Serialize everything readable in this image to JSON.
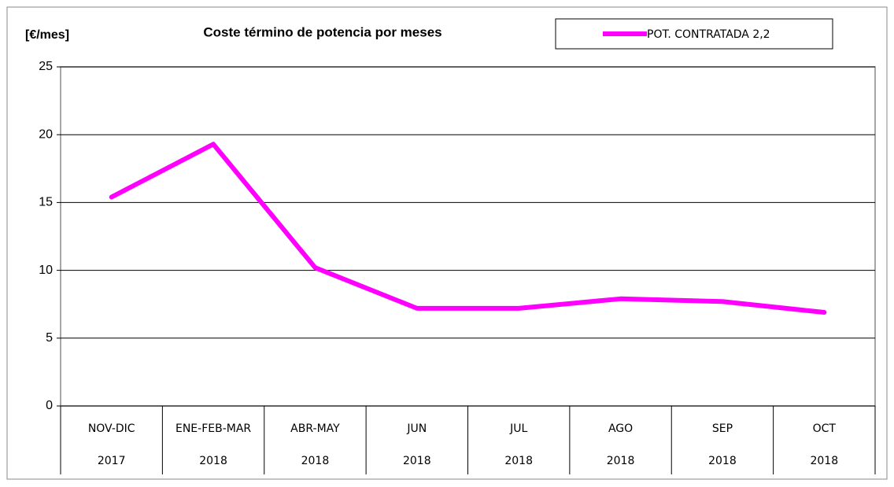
{
  "chart_data": {
    "type": "line",
    "title": "Coste término de potencia por meses",
    "y_label": "[€/mes]",
    "categories": [
      [
        "NOV-DIC",
        "2017"
      ],
      [
        "ENE-FEB-MAR",
        "2018"
      ],
      [
        "ABR-MAY",
        "2018"
      ],
      [
        "JUN",
        "2018"
      ],
      [
        "JUL",
        "2018"
      ],
      [
        "AGO",
        "2018"
      ],
      [
        "SEP",
        "2018"
      ],
      [
        "OCT",
        "2018"
      ]
    ],
    "series": [
      {
        "name": "POT. CONTRATADA 2,2",
        "color": "#ff00ff",
        "values": [
          15.4,
          19.3,
          10.2,
          7.2,
          7.2,
          7.9,
          7.7,
          6.9
        ]
      }
    ],
    "ylim": [
      0,
      25
    ],
    "yticks": [
      0,
      5,
      10,
      15,
      20,
      25
    ],
    "grid": true,
    "legend": "top-right"
  }
}
